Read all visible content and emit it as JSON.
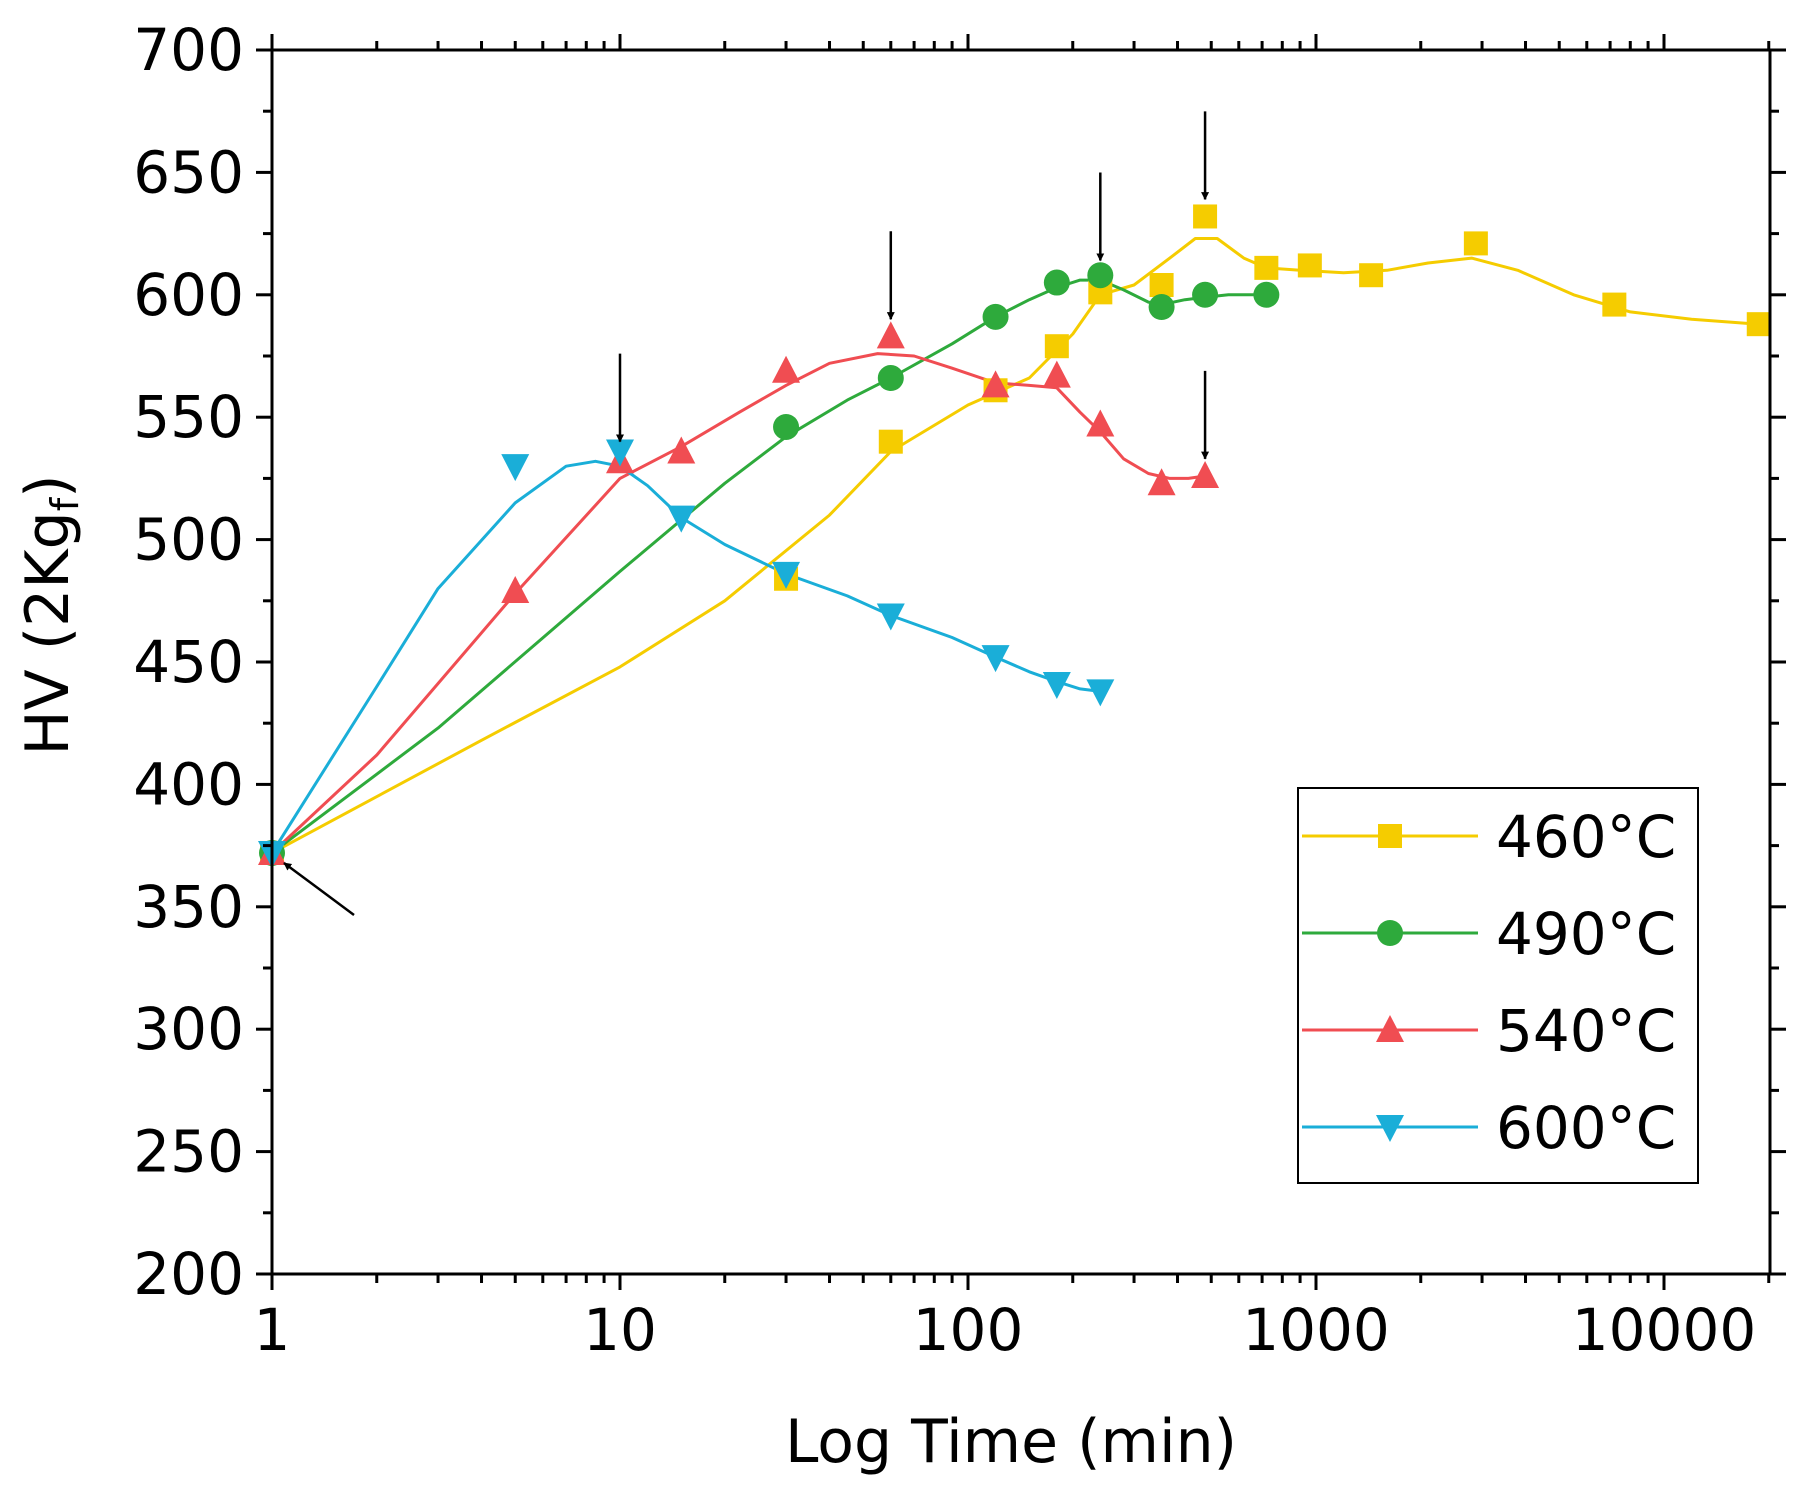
{
  "chart_data": {
    "type": "line",
    "xscale": "log",
    "xlabel": "Log Time (min)",
    "ylabel_main": "HV (2Kg",
    "ylabel_subscript": "f",
    "ylabel_close": ")",
    "xlim": [
      1,
      25000
    ],
    "ylim": [
      200,
      700
    ],
    "x_ticks": [
      1,
      10,
      100,
      1000,
      10000
    ],
    "x_tick_labels": [
      "1",
      "10",
      "100",
      "1000",
      "10000"
    ],
    "y_ticks": [
      200,
      250,
      300,
      350,
      400,
      450,
      500,
      550,
      600,
      650,
      700
    ],
    "y_tick_labels": [
      "200",
      "250",
      "300",
      "350",
      "400",
      "450",
      "500",
      "550",
      "600",
      "650",
      "700"
    ],
    "legend_position": "bottom-right",
    "series": [
      {
        "name": "460°C",
        "color": "#F5CC00",
        "marker": "square",
        "x": [
          1,
          30,
          60,
          120,
          180,
          240,
          360,
          480,
          720,
          960,
          1440,
          2880,
          7200,
          18720
        ],
        "y": [
          372,
          484,
          540,
          561,
          579,
          601,
          604,
          632,
          611,
          612,
          608,
          621,
          596,
          588
        ],
        "curve_x": [
          1,
          4,
          10,
          20,
          40,
          60,
          100,
          150,
          200,
          240,
          300,
          380,
          450,
          520,
          620,
          720,
          900,
          1200,
          1600,
          2100,
          2800,
          3800,
          5500,
          8000,
          12000,
          18720
        ],
        "curve_y": [
          372,
          418,
          448,
          475,
          510,
          536,
          555,
          566,
          584,
          600,
          604,
          615,
          623,
          623,
          615,
          611,
          610,
          609,
          610,
          613,
          615,
          610,
          600,
          593,
          590,
          588
        ]
      },
      {
        "name": "490°C",
        "color": "#2EAA3C",
        "marker": "circle",
        "x": [
          1,
          30,
          60,
          120,
          180,
          240,
          360,
          480,
          720
        ],
        "y": [
          372,
          546,
          566,
          591,
          605,
          608,
          595,
          600,
          600
        ],
        "curve_x": [
          1,
          3,
          10,
          20,
          30,
          45,
          60,
          90,
          120,
          150,
          180,
          210,
          240,
          280,
          330,
          360,
          420,
          480,
          560,
          720
        ],
        "curve_y": [
          372,
          423,
          487,
          523,
          542,
          557,
          566,
          580,
          591,
          598,
          603,
          606,
          606,
          602,
          597,
          596,
          598,
          599,
          600,
          600
        ]
      },
      {
        "name": "540°C",
        "color": "#F04D52",
        "marker": "triangle-up",
        "x": [
          1,
          5,
          10,
          15,
          30,
          60,
          120,
          180,
          240,
          360,
          480
        ],
        "y": [
          372,
          479,
          532,
          536,
          569,
          583,
          563,
          567,
          547,
          523,
          526
        ],
        "curve_x": [
          1,
          2,
          5,
          10,
          15,
          22,
          30,
          40,
          55,
          70,
          90,
          120,
          150,
          180,
          210,
          240,
          280,
          330,
          380,
          430,
          480
        ],
        "curve_y": [
          372,
          412,
          478,
          525,
          538,
          552,
          563,
          572,
          576,
          575,
          570,
          564,
          563,
          562,
          552,
          544,
          533,
          527,
          525,
          525,
          526
        ]
      },
      {
        "name": "600°C",
        "color": "#1AAED8",
        "marker": "triangle-down",
        "x": [
          1,
          5,
          10,
          15,
          30,
          60,
          120,
          180,
          240
        ],
        "y": [
          372,
          530,
          536,
          509,
          486,
          469,
          452,
          441,
          438
        ],
        "curve_x": [
          1,
          2,
          3,
          5,
          7,
          8.5,
          10,
          12,
          15,
          20,
          30,
          45,
          60,
          90,
          120,
          150,
          180,
          210,
          240
        ],
        "curve_y": [
          372,
          440,
          480,
          515,
          530,
          532,
          530,
          522,
          509,
          498,
          486,
          477,
          469,
          460,
          452,
          446,
          442,
          439,
          438
        ]
      }
    ],
    "annotations": [
      {
        "type": "arrow",
        "direction": "down",
        "x": 10,
        "y": 540
      },
      {
        "type": "arrow",
        "direction": "down",
        "x": 60,
        "y": 590
      },
      {
        "type": "arrow",
        "direction": "down",
        "x": 240,
        "y": 614
      },
      {
        "type": "arrow",
        "direction": "down",
        "x": 480,
        "y": 639
      },
      {
        "type": "arrow",
        "direction": "down",
        "x": 480,
        "y": 533
      },
      {
        "type": "arrow",
        "direction": "up-left",
        "x": 1,
        "y": 372
      }
    ]
  }
}
